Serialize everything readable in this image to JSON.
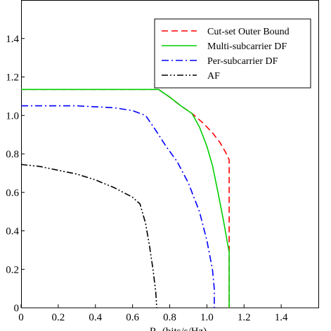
{
  "chart_data": {
    "type": "line",
    "xlabel": "R",
    "xlabel_rest": "(bits/s/Hz)",
    "ylabel": "",
    "xlim": [
      0,
      1.6
    ],
    "ylim": [
      0,
      1.6
    ],
    "xticks": [
      0,
      0.2,
      0.4,
      0.6,
      0.8,
      1.0,
      1.2,
      1.4
    ],
    "xtick_labels": [
      "0",
      "0.2",
      "0.4",
      "0.6",
      "0.8",
      "1.0",
      "1.2",
      "1.4"
    ],
    "yticks": [
      0,
      0.2,
      0.4,
      0.6,
      0.8,
      1.0,
      1.2,
      1.4
    ],
    "ytick_labels": [
      "0",
      "0.2",
      "0.4",
      "0.6",
      "0.8",
      "1.0",
      "1.2",
      "1.4"
    ],
    "grid": false,
    "legend_position": "top-right",
    "series": [
      {
        "name": "Cut-set Outer Bound",
        "color": "#ff0000",
        "dash": "dashed",
        "points": [
          [
            0,
            1.135
          ],
          [
            0.74,
            1.135
          ],
          [
            0.8,
            1.095
          ],
          [
            0.86,
            1.05
          ],
          [
            0.92,
            1.01
          ],
          [
            0.98,
            0.96
          ],
          [
            1.03,
            0.91
          ],
          [
            1.07,
            0.86
          ],
          [
            1.1,
            0.81
          ],
          [
            1.12,
            0.77
          ],
          [
            1.12,
            0.5
          ],
          [
            1.12,
            0.0
          ]
        ]
      },
      {
        "name": "Multi-subcarrier DF",
        "color": "#00d000",
        "dash": "solid",
        "points": [
          [
            0,
            1.135
          ],
          [
            0.74,
            1.135
          ],
          [
            0.8,
            1.095
          ],
          [
            0.86,
            1.05
          ],
          [
            0.92,
            1.01
          ],
          [
            0.96,
            0.94
          ],
          [
            1.0,
            0.84
          ],
          [
            1.03,
            0.74
          ],
          [
            1.06,
            0.6
          ],
          [
            1.09,
            0.45
          ],
          [
            1.11,
            0.34
          ],
          [
            1.12,
            0.29
          ],
          [
            1.12,
            0.0
          ]
        ]
      },
      {
        "name": "Per-subcarrier DF",
        "color": "#0000ff",
        "dash": "dashdot",
        "points": [
          [
            0,
            1.05
          ],
          [
            0.3,
            1.05
          ],
          [
            0.5,
            1.04
          ],
          [
            0.6,
            1.025
          ],
          [
            0.67,
            1.0
          ],
          [
            0.72,
            0.93
          ],
          [
            0.78,
            0.84
          ],
          [
            0.84,
            0.76
          ],
          [
            0.9,
            0.65
          ],
          [
            0.96,
            0.5
          ],
          [
            1.0,
            0.35
          ],
          [
            1.03,
            0.2
          ],
          [
            1.04,
            0.1
          ],
          [
            1.04,
            0.0
          ]
        ]
      },
      {
        "name": "AF",
        "color": "#000000",
        "dash": "dashdotdot",
        "points": [
          [
            0,
            0.745
          ],
          [
            0.1,
            0.735
          ],
          [
            0.2,
            0.715
          ],
          [
            0.3,
            0.695
          ],
          [
            0.4,
            0.665
          ],
          [
            0.5,
            0.625
          ],
          [
            0.6,
            0.575
          ],
          [
            0.64,
            0.54
          ],
          [
            0.67,
            0.44
          ],
          [
            0.69,
            0.33
          ],
          [
            0.71,
            0.2
          ],
          [
            0.725,
            0.08
          ],
          [
            0.73,
            0.0
          ]
        ]
      }
    ]
  }
}
